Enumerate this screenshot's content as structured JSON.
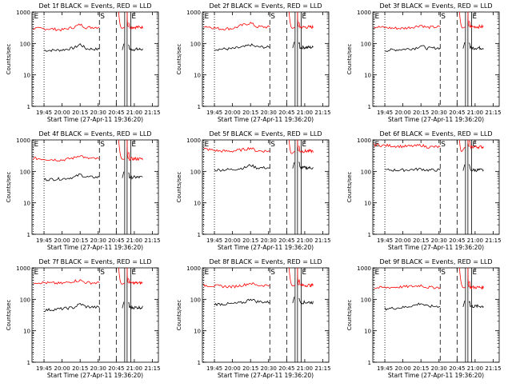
{
  "chart_data": {
    "type": "line",
    "yscale": "log",
    "ylim": [
      1,
      1000
    ],
    "xlim": [
      "19:35",
      "21:20"
    ],
    "ylabel": "Counts/sec",
    "xlabel": "Start Time (27-Apr-11 19:36:20)",
    "x_ticks": [
      "19:45",
      "20:00",
      "20:15",
      "20:30",
      "20:45",
      "21:00",
      "21:15"
    ],
    "y_ticks": [
      1,
      10,
      100,
      1000
    ],
    "colors": {
      "events": "#000000",
      "lld": "#ff0000"
    },
    "markers": [
      {
        "label": "E",
        "time": "19:36",
        "style": "dotted"
      },
      {
        "label": "",
        "time": "19:45",
        "style": "dotted"
      },
      {
        "label": "S",
        "time": "20:31",
        "style": "dashed"
      },
      {
        "label": "",
        "time": "20:45",
        "style": "dashed"
      },
      {
        "label": "",
        "time": "20:52",
        "style": "solid"
      },
      {
        "label": "",
        "time": "20:54",
        "style": "solid"
      },
      {
        "label": "E",
        "time": "20:57",
        "style": "solid"
      }
    ],
    "panels": [
      {
        "title": "Det 1f BLACK = Events, RED = LLD",
        "series": [
          {
            "color": "events",
            "x": [
              "19:45",
              "20:00",
              "20:10",
              "20:15",
              "20:20",
              "20:31"
            ],
            "y": [
              60,
              62,
              72,
              95,
              68,
              65
            ]
          },
          {
            "color": "lld",
            "x": [
              "19:36",
              "19:50",
              "20:00",
              "20:10",
              "20:15",
              "20:20",
              "20:31"
            ],
            "y": [
              300,
              290,
              270,
              330,
              400,
              320,
              330
            ]
          }
        ]
      },
      {
        "title": "Det 2f BLACK = Events, RED = LLD",
        "series": [
          {
            "color": "events",
            "x": [
              "19:45",
              "20:00",
              "20:10",
              "20:15",
              "20:20",
              "20:31"
            ],
            "y": [
              65,
              68,
              78,
              90,
              78,
              75
            ]
          },
          {
            "color": "lld",
            "x": [
              "19:36",
              "19:50",
              "20:00",
              "20:10",
              "20:15",
              "20:20",
              "20:31"
            ],
            "y": [
              360,
              290,
              300,
              400,
              450,
              340,
              330
            ]
          }
        ]
      },
      {
        "title": "Det 3f BLACK = Events, RED = LLD",
        "series": [
          {
            "color": "events",
            "x": [
              "19:45",
              "20:00",
              "20:10",
              "20:15",
              "20:20",
              "20:31"
            ],
            "y": [
              60,
              65,
              70,
              85,
              70,
              72
            ]
          },
          {
            "color": "lld",
            "x": [
              "19:36",
              "19:50",
              "20:00",
              "20:10",
              "20:15",
              "20:20",
              "20:31"
            ],
            "y": [
              340,
              310,
              300,
              340,
              380,
              320,
              340
            ]
          }
        ]
      },
      {
        "title": "Det 4f BLACK = Events, RED = LLD",
        "series": [
          {
            "color": "events",
            "x": [
              "19:45",
              "20:00",
              "20:10",
              "20:15",
              "20:20",
              "20:31"
            ],
            "y": [
              55,
              58,
              65,
              80,
              66,
              65
            ]
          },
          {
            "color": "lld",
            "x": [
              "19:36",
              "19:50",
              "20:00",
              "20:10",
              "20:15",
              "20:20",
              "20:31"
            ],
            "y": [
              260,
              240,
              230,
              270,
              330,
              260,
              250
            ]
          }
        ]
      },
      {
        "title": "Det 5f BLACK = Events, RED = LLD",
        "series": [
          {
            "color": "events",
            "x": [
              "19:45",
              "20:00",
              "20:10",
              "20:15",
              "20:20",
              "20:31"
            ],
            "y": [
              110,
              115,
              130,
              160,
              130,
              130
            ]
          },
          {
            "color": "lld",
            "x": [
              "19:36",
              "19:50",
              "20:00",
              "20:10",
              "20:15",
              "20:20",
              "20:31"
            ],
            "y": [
              520,
              440,
              440,
              500,
              560,
              450,
              440
            ]
          }
        ]
      },
      {
        "title": "Det 6f BLACK = Events, RED = LLD",
        "series": [
          {
            "color": "events",
            "x": [
              "19:45",
              "20:00",
              "20:10",
              "20:15",
              "20:20",
              "20:31"
            ],
            "y": [
              110,
              110,
              115,
              120,
              110,
              110
            ]
          },
          {
            "color": "lld",
            "x": [
              "19:36",
              "19:50",
              "20:00",
              "20:10",
              "20:15",
              "20:20",
              "20:31"
            ],
            "y": [
              700,
              650,
              620,
              640,
              680,
              600,
              600
            ]
          }
        ]
      },
      {
        "title": "Det 7f BLACK = Events, RED = LLD",
        "series": [
          {
            "color": "events",
            "x": [
              "19:45",
              "20:00",
              "20:10",
              "20:15",
              "20:20",
              "20:31"
            ],
            "y": [
              45,
              50,
              55,
              72,
              58,
              55
            ]
          },
          {
            "color": "lld",
            "x": [
              "19:36",
              "19:50",
              "20:00",
              "20:10",
              "20:15",
              "20:20",
              "20:31"
            ],
            "y": [
              350,
              330,
              320,
              380,
              400,
              340,
              330
            ]
          }
        ]
      },
      {
        "title": "Det 8f BLACK = Events, RED = LLD",
        "series": [
          {
            "color": "events",
            "x": [
              "19:45",
              "20:00",
              "20:10",
              "20:15",
              "20:20",
              "20:31"
            ],
            "y": [
              70,
              72,
              80,
              105,
              85,
              80
            ]
          },
          {
            "color": "lld",
            "x": [
              "19:36",
              "19:50",
              "20:00",
              "20:10",
              "20:15",
              "20:20",
              "20:31"
            ],
            "y": [
              280,
              260,
              250,
              290,
              330,
              280,
              280
            ]
          }
        ]
      },
      {
        "title": "Det 9f BLACK = Events, RED = LLD",
        "series": [
          {
            "color": "events",
            "x": [
              "19:45",
              "20:00",
              "20:10",
              "20:15",
              "20:20",
              "20:31"
            ],
            "y": [
              50,
              55,
              65,
              75,
              60,
              60
            ]
          },
          {
            "color": "lld",
            "x": [
              "19:36",
              "19:50",
              "20:00",
              "20:10",
              "20:15",
              "20:20",
              "20:31"
            ],
            "y": [
              230,
              240,
              250,
              260,
              280,
              240,
              240
            ]
          }
        ]
      }
    ]
  }
}
